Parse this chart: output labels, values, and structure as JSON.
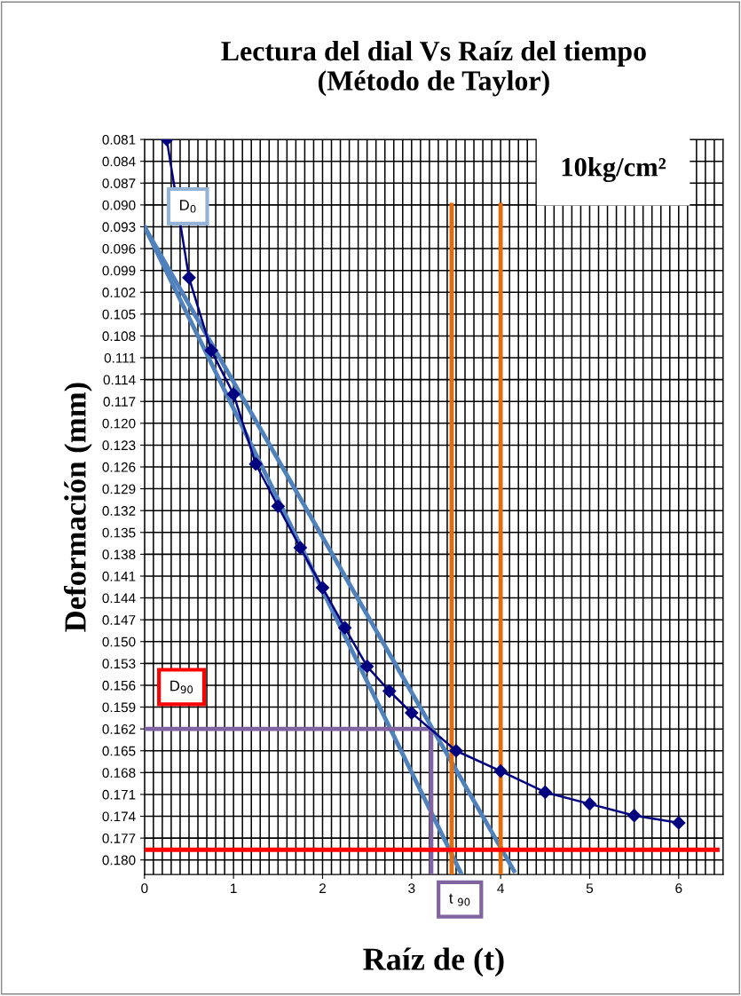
{
  "chart_data": {
    "type": "line",
    "title": "Lectura del dial Vs Raíz del tiempo\n(Método de Taylor)",
    "xlabel": "Raíz de (t)",
    "ylabel": "Deformación (mm)",
    "annotations": [
      "10kg/cm²",
      "D$_{0}$",
      "D$_{90}$",
      "t $_{90}$"
    ],
    "series": [
      {
        "color": "#000080",
        "marker": "diamond",
        "x": [
          0.25,
          0.5,
          0.75,
          1.0,
          1.25,
          1.5,
          1.75,
          2.0,
          2.25,
          2.5,
          2.75,
          3.0,
          3.5,
          4.0,
          4.5,
          5.0,
          5.5,
          6.0
        ],
        "values": [
          0.081,
          0.1,
          0.11,
          0.116,
          0.1256,
          0.1314,
          0.1371,
          0.1426,
          0.1481,
          0.1534,
          0.1568,
          0.1598,
          0.165,
          0.1678,
          0.1707,
          0.1723,
          0.1739,
          0.1749
        ]
      },
      {
        "color": "#4f81bd",
        "marker": "none",
        "x": [
          0,
          3.55
        ],
        "values": [
          0.093,
          0.1817
        ]
      },
      {
        "color": "#4f81bd",
        "marker": "none",
        "x": [
          0,
          4.15
        ],
        "values": [
          0.093,
          0.1815
        ]
      },
      {
        "color": "#e46c0a",
        "marker": "none",
        "x": [
          3.45,
          3.45
        ],
        "values": [
          0.09,
          0.182
        ]
      },
      {
        "color": "#e46c0a",
        "marker": "none",
        "x": [
          4.0,
          4.0
        ],
        "values": [
          0.09,
          0.182
        ]
      },
      {
        "color": "#8064a2",
        "marker": "none",
        "x": [
          0,
          3.22,
          3.22
        ],
        "values": [
          0.162,
          0.162,
          0.182
        ]
      }
    ],
    "ref_lines": [
      {
        "axis": "y",
        "value": 0.1786,
        "color": "#ff0000"
      }
    ],
    "xlim": [
      0,
      6.5
    ],
    "xticks": [
      0,
      1,
      2,
      3,
      4,
      5,
      6
    ],
    "ylim": [
      0.182,
      0.081
    ],
    "yticks": [
      0.081,
      0.084,
      0.087,
      {
        "value": 0.09,
        "label": "0.090"
      },
      0.093,
      0.096,
      0.099,
      0.102,
      0.105,
      0.108,
      0.111,
      0.114,
      0.117,
      {
        "value": 0.12,
        "label": "0.120"
      },
      0.123,
      0.126,
      0.129,
      0.132,
      0.135,
      0.138,
      0.141,
      0.144,
      0.147,
      {
        "value": 0.15,
        "label": "0.150"
      },
      0.153,
      0.156,
      0.159,
      0.162,
      0.165,
      0.168,
      0.171,
      0.174,
      0.177,
      {
        "value": 0.18,
        "label": "0.180"
      }
    ],
    "grid": true,
    "legend": false
  }
}
